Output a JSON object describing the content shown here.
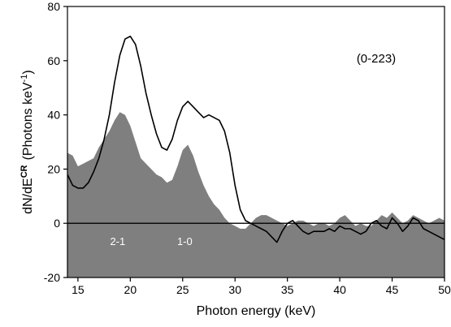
{
  "chart_data": {
    "type": "area",
    "xlabel": "Photon energy  (keV)",
    "ylabel_main": "dN/dE",
    "ylabel_sup": "CR",
    "ylabel_unit": "(Photons  keV",
    "ylabel_unit_sup": "-1",
    "ylabel_close": ")",
    "xlim": [
      14,
      50
    ],
    "ylim": [
      -20,
      80
    ],
    "xticks": [
      15,
      20,
      25,
      30,
      35,
      40,
      45,
      50
    ],
    "yticks": [
      -20,
      0,
      20,
      40,
      60,
      80
    ],
    "annotation": "(0-223)",
    "peak_labels": [
      {
        "text": "2-1",
        "x": 18.8,
        "y": -8
      },
      {
        "text": "1-0",
        "x": 25.2,
        "y": -8
      }
    ],
    "colors": {
      "fill": "#7f7f7f",
      "line": "#000000"
    },
    "series": [
      {
        "kind": "filled-area",
        "x": [
          14,
          14.5,
          15,
          15.5,
          16,
          16.5,
          17,
          17.5,
          18,
          18.5,
          19,
          19.5,
          20,
          20.5,
          21,
          21.5,
          22,
          22.5,
          23,
          23.5,
          24,
          24.5,
          25,
          25.5,
          26,
          26.5,
          27,
          27.5,
          28,
          28.5,
          29,
          29.5,
          30,
          30.5,
          31,
          31.5,
          32,
          32.5,
          33,
          33.5,
          34,
          34.5,
          35,
          35.5,
          36,
          36.5,
          37,
          37.5,
          38,
          38.5,
          39,
          39.5,
          40,
          40.5,
          41,
          41.5,
          42,
          42.5,
          43,
          43.5,
          44,
          44.5,
          45,
          45.5,
          46,
          46.5,
          47,
          47.5,
          48,
          48.5,
          49,
          49.5,
          50
        ],
        "y": [
          26,
          25,
          21,
          22,
          23,
          24,
          28,
          31,
          34,
          38,
          41,
          40,
          36,
          30,
          24,
          22,
          20,
          18,
          17,
          15,
          16,
          21,
          27,
          29,
          25,
          19,
          14,
          10,
          7,
          5,
          2,
          0,
          -1,
          -2,
          -2,
          0,
          2,
          3,
          3,
          2,
          1,
          0,
          -1,
          0,
          1,
          1,
          0,
          -1,
          0,
          0,
          -1,
          0,
          2,
          3,
          1,
          -1,
          0,
          -1,
          -1,
          1,
          3,
          2,
          4,
          2,
          0,
          1,
          3,
          2,
          1,
          0,
          1,
          2,
          1
        ]
      },
      {
        "kind": "line",
        "x": [
          14,
          14.5,
          15,
          15.5,
          16,
          16.5,
          17,
          17.5,
          18,
          18.5,
          19,
          19.5,
          20,
          20.5,
          21,
          21.5,
          22,
          22.5,
          23,
          23.5,
          24,
          24.5,
          25,
          25.5,
          26,
          26.5,
          27,
          27.5,
          28,
          28.5,
          29,
          29.5,
          30,
          30.5,
          31,
          31.5,
          32,
          32.5,
          33,
          33.5,
          34,
          34.5,
          35,
          35.5,
          36,
          36.5,
          37,
          37.5,
          38,
          38.5,
          39,
          39.5,
          40,
          40.5,
          41,
          41.5,
          42,
          42.5,
          43,
          43.5,
          44,
          44.5,
          45,
          45.5,
          46,
          46.5,
          47,
          47.5,
          48,
          48.5,
          49,
          49.5,
          50
        ],
        "y": [
          18,
          14,
          13,
          13,
          15,
          19,
          24,
          31,
          40,
          52,
          62,
          68,
          69,
          66,
          58,
          48,
          40,
          33,
          28,
          27,
          31,
          38,
          43,
          45,
          43,
          41,
          39,
          40,
          39,
          38,
          34,
          26,
          14,
          5,
          1,
          0,
          -1,
          -2,
          -3,
          -5,
          -7,
          -3,
          0,
          1,
          -1,
          -3,
          -4,
          -3,
          -3,
          -3,
          -2,
          -3,
          -1,
          -2,
          -2,
          -3,
          -4,
          -3,
          0,
          1,
          -1,
          -2,
          2,
          0,
          -3,
          -1,
          2,
          1,
          -2,
          -3,
          -4,
          -5,
          -6
        ]
      }
    ]
  }
}
